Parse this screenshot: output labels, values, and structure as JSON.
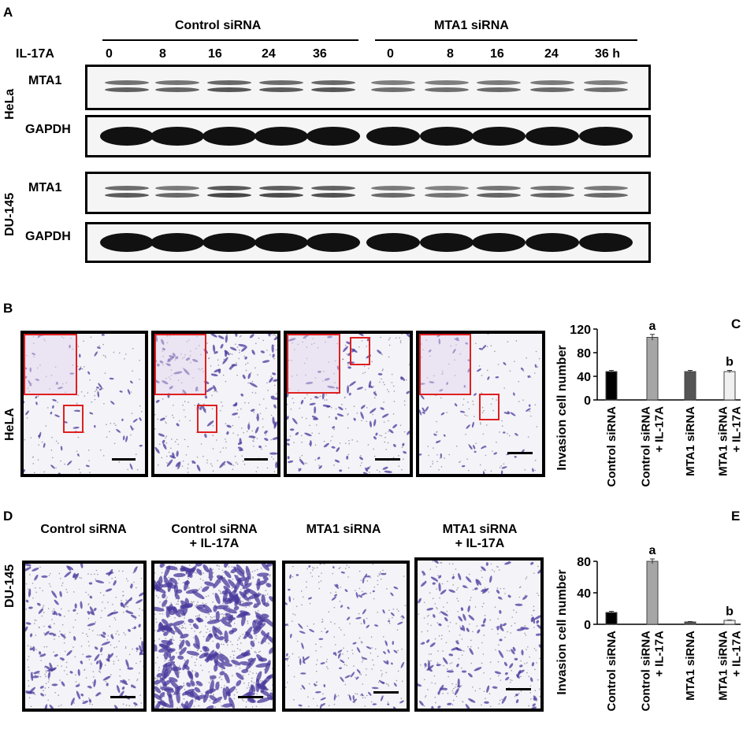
{
  "panelA": {
    "letter": "A",
    "groups": [
      "Control siRNA",
      "MTA1 siRNA"
    ],
    "treatment_label": "IL-17A",
    "timepoints": [
      "0",
      "8",
      "16",
      "24",
      "36",
      "0",
      "8",
      "16",
      "24",
      "36 h"
    ],
    "cell_lines": [
      "HeLa",
      "DU-145"
    ],
    "rows": [
      "MTA1",
      "GAPDH",
      "MTA1",
      "GAPDH"
    ],
    "mta1_intensity": {
      "HeLa": [
        0.55,
        0.5,
        0.65,
        0.6,
        0.65,
        0.4,
        0.4,
        0.45,
        0.45,
        0.4
      ],
      "DU-145": [
        0.6,
        0.45,
        0.8,
        0.75,
        0.7,
        0.45,
        0.35,
        0.5,
        0.5,
        0.45
      ]
    }
  },
  "panelB": {
    "letter": "B",
    "cell_line": "HeLA"
  },
  "panelD": {
    "letter": "D",
    "cell_line": "DU-145",
    "conditions": [
      {
        "line1": "Control siRNA",
        "line2": ""
      },
      {
        "line1": "Control siRNA",
        "line2": "+ IL-17A"
      },
      {
        "line1": "MTA1 siRNA",
        "line2": ""
      },
      {
        "line1": "MTA1 siRNA",
        "line2": "+ IL-17A"
      }
    ]
  },
  "chart_data": [
    {
      "panel": "C",
      "type": "bar",
      "ylabel": "Invasion cell number",
      "categories": [
        "Control siRNA",
        "Control siRNA + IL-17A",
        "MTA1 siRNA",
        "MTA1 siRNA + IL-17A"
      ],
      "category_lines": [
        [
          "Control siRNA"
        ],
        [
          "Control siRNA",
          "+ IL-17A"
        ],
        [
          "MTA1 siRNA"
        ],
        [
          "MTA1 siRNA",
          "+ IL-17A"
        ]
      ],
      "values": [
        48,
        106,
        48,
        48
      ],
      "errors": [
        2,
        5,
        2,
        2
      ],
      "annotations": [
        "",
        "a",
        "",
        "b"
      ],
      "colors": [
        "#000000",
        "#a6a6a6",
        "#555555",
        "#f0f0f0"
      ],
      "ylim": [
        0,
        120
      ],
      "yticks": [
        0,
        40,
        80,
        120
      ]
    },
    {
      "panel": "E",
      "type": "bar",
      "ylabel": "Invasion cell number",
      "categories": [
        "Control siRNA",
        "Control siRNA + IL-17A",
        "MTA1 siRNA",
        "MTA1 siRNA + IL-17A"
      ],
      "category_lines": [
        [
          "Control siRNA"
        ],
        [
          "Control siRNA",
          "+ IL-17A"
        ],
        [
          "MTA1 siRNA"
        ],
        [
          "MTA1 siRNA",
          "+ IL-17A"
        ]
      ],
      "values": [
        15,
        80,
        3,
        5
      ],
      "errors": [
        1.5,
        3,
        0.5,
        0.5
      ],
      "annotations": [
        "",
        "a",
        "",
        "b"
      ],
      "colors": [
        "#000000",
        "#a6a6a6",
        "#555555",
        "#f0f0f0"
      ],
      "ylim": [
        0,
        90
      ],
      "yticks": [
        0,
        40,
        80
      ]
    }
  ]
}
